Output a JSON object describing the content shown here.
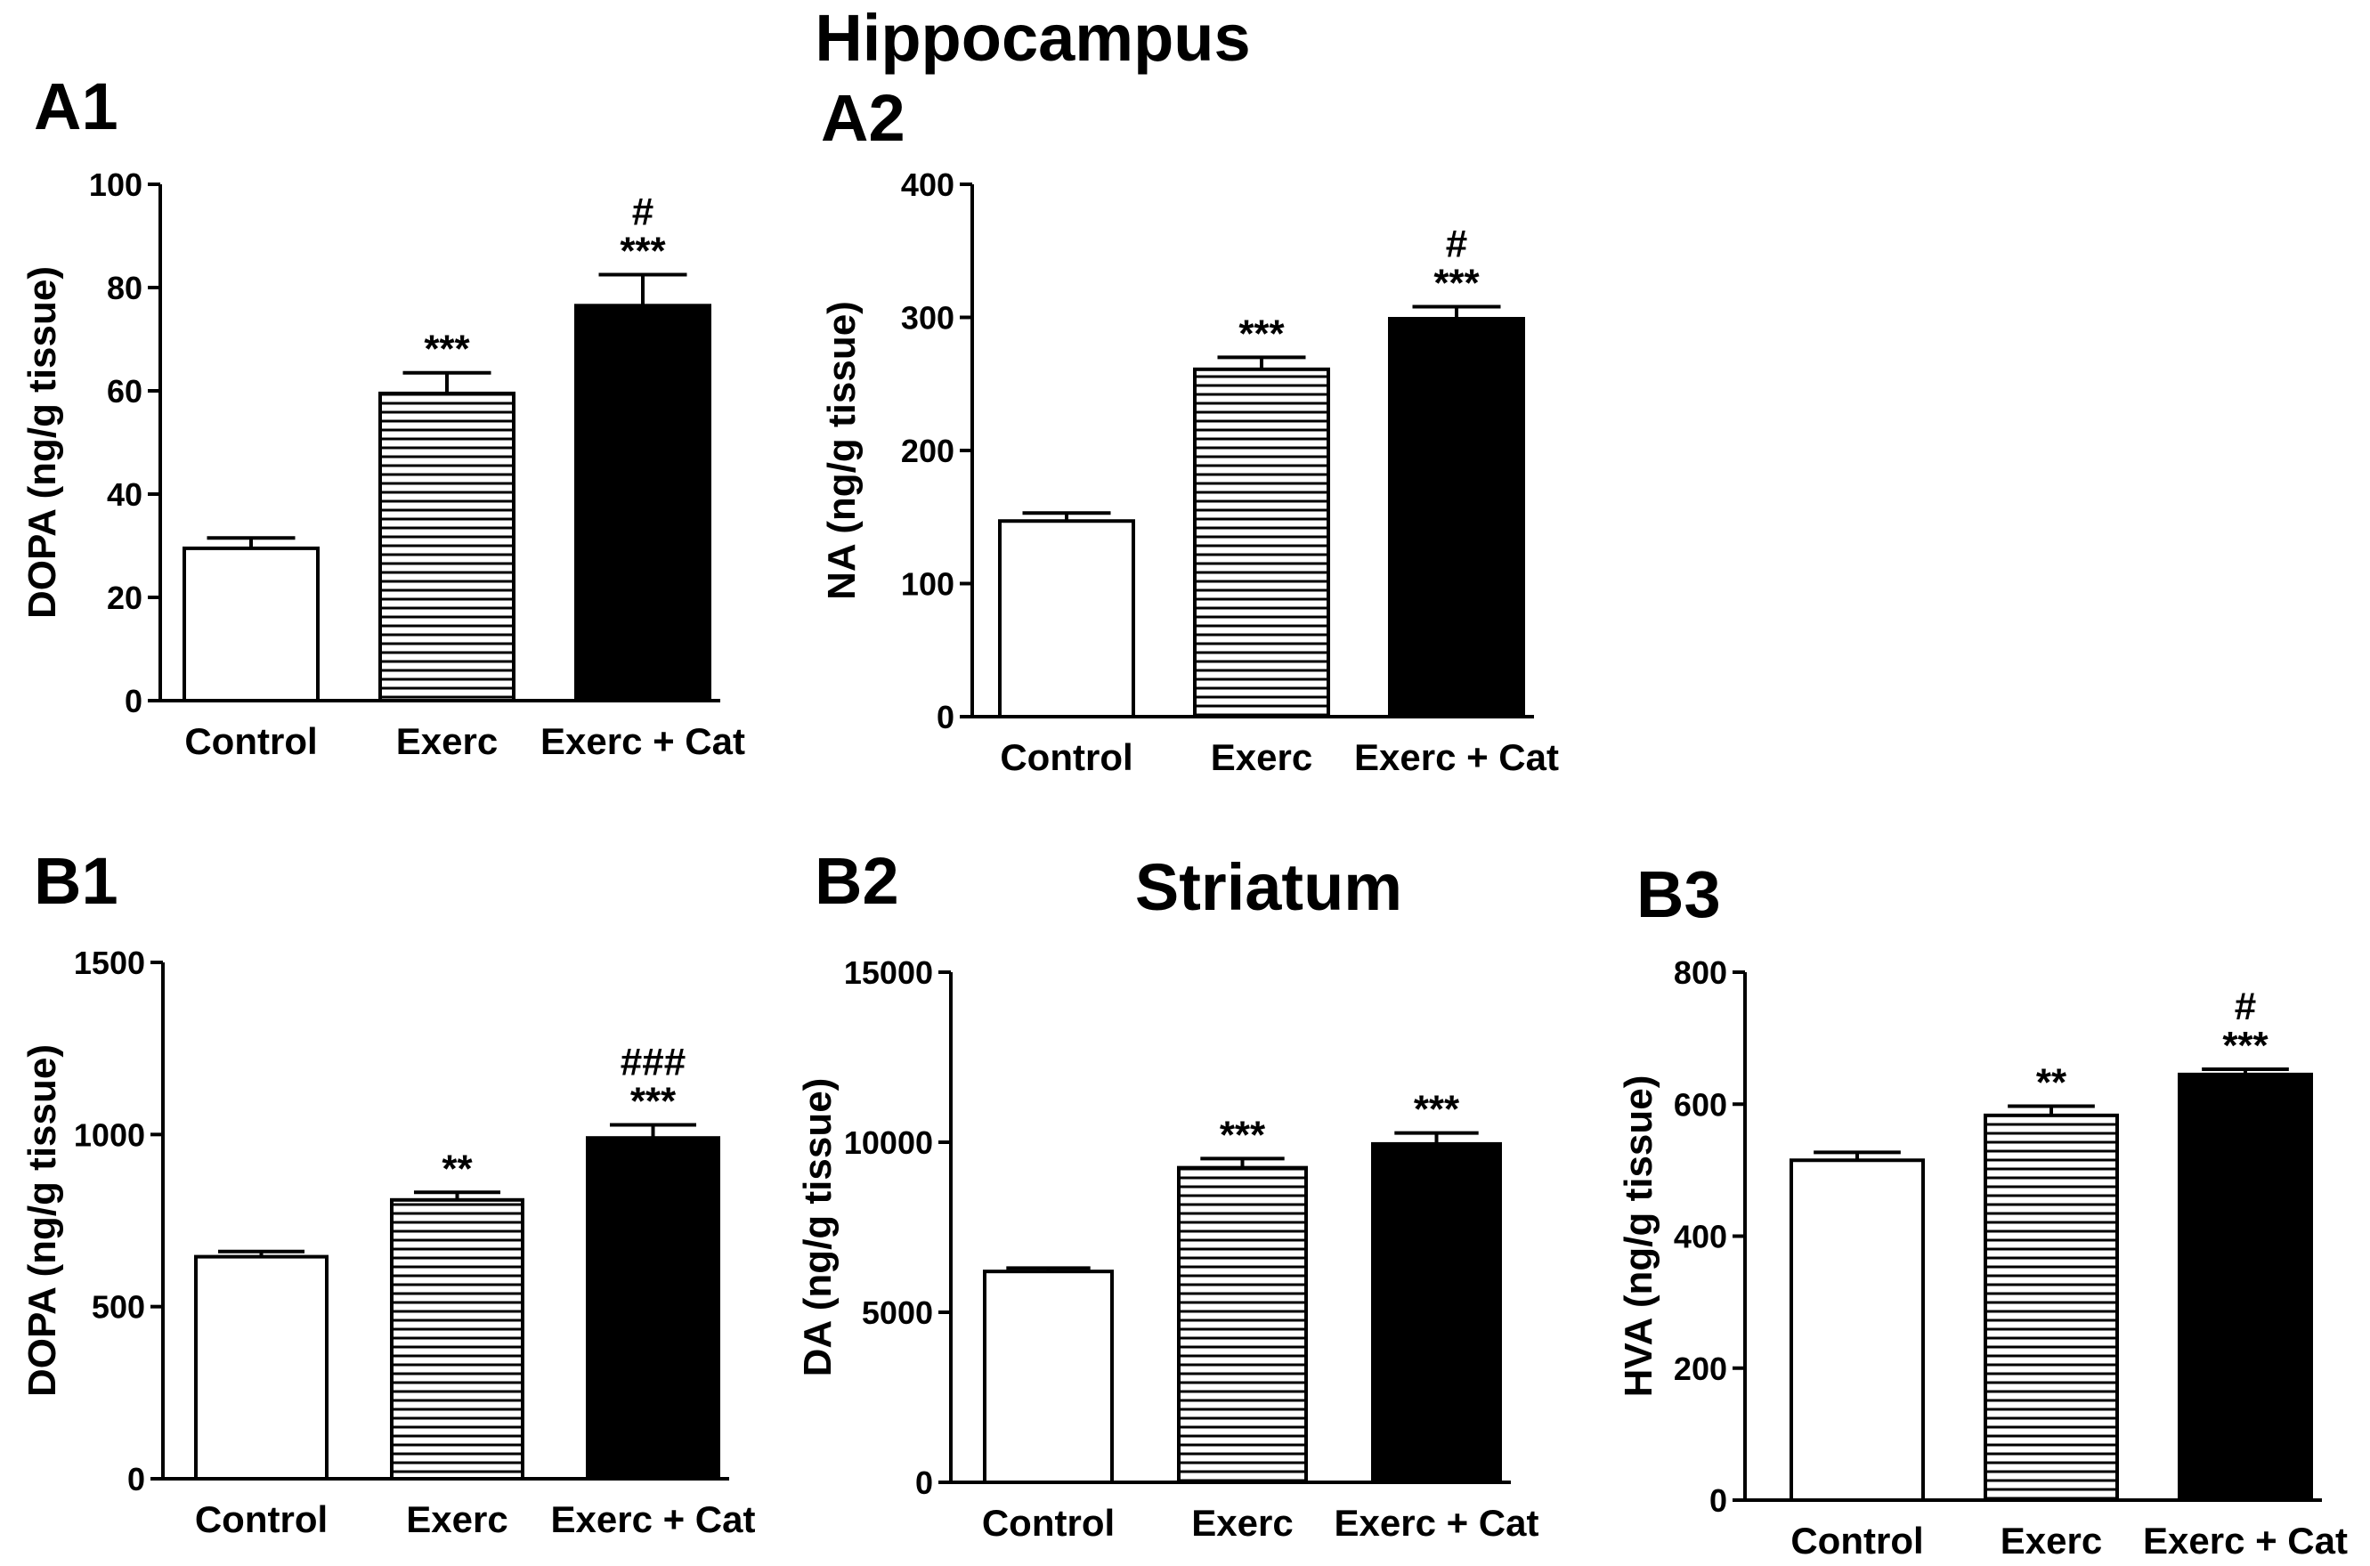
{
  "figure": {
    "title_hippocampus": "Hippocampus",
    "title_striatum": "Striatum"
  },
  "chart_data": [
    {
      "panel": "A1",
      "region": "Hippocampus",
      "type": "bar",
      "categories": [
        "Control",
        "Exerc",
        "Exerc + Cat"
      ],
      "values": [
        29.5,
        59.5,
        76.5
      ],
      "errors": [
        2,
        4,
        6
      ],
      "significance": [
        "",
        "***",
        "***"
      ],
      "significance2": [
        "",
        "",
        "#"
      ],
      "ylabel": "DOPA (ng/g tissue)",
      "ylim": [
        0,
        100
      ],
      "yticks": [
        0,
        20,
        40,
        60,
        80,
        100
      ],
      "fills": [
        "white",
        "hatch",
        "black"
      ]
    },
    {
      "panel": "A2",
      "region": "Hippocampus",
      "type": "bar",
      "categories": [
        "Control",
        "Exerc",
        "Exerc + Cat"
      ],
      "values": [
        147,
        261,
        299
      ],
      "errors": [
        6,
        9,
        9
      ],
      "significance": [
        "",
        "***",
        "***"
      ],
      "significance2": [
        "",
        "",
        "#"
      ],
      "ylabel": "NA (ng/g tissue)",
      "ylim": [
        0,
        400
      ],
      "yticks": [
        0,
        100,
        200,
        300,
        400
      ],
      "fills": [
        "white",
        "hatch",
        "black"
      ]
    },
    {
      "panel": "B1",
      "region": "Striatum",
      "type": "bar",
      "categories": [
        "Control",
        "Exerc",
        "Exerc + Cat"
      ],
      "values": [
        645,
        810,
        990
      ],
      "errors": [
        15,
        22,
        38
      ],
      "significance": [
        "",
        "**",
        "***"
      ],
      "significance2": [
        "",
        "",
        "###"
      ],
      "ylabel": "DOPA (ng/g tissue)",
      "ylim": [
        0,
        1500
      ],
      "yticks": [
        0,
        500,
        1000,
        1500
      ],
      "fills": [
        "white",
        "hatch",
        "black"
      ]
    },
    {
      "panel": "B2",
      "region": "Striatum",
      "type": "bar",
      "categories": [
        "Control",
        "Exerc",
        "Exerc + Cat"
      ],
      "values": [
        6200,
        9250,
        9950
      ],
      "errors": [
        100,
        270,
        320
      ],
      "significance": [
        "",
        "***",
        "***"
      ],
      "significance2": [
        "",
        "",
        ""
      ],
      "ylabel": "DA (ng/g tissue)",
      "ylim": [
        0,
        15000
      ],
      "yticks": [
        0,
        5000,
        10000,
        15000
      ],
      "fills": [
        "white",
        "hatch",
        "black"
      ]
    },
    {
      "panel": "B3",
      "region": "Striatum",
      "type": "bar",
      "categories": [
        "Control",
        "Exerc",
        "Exerc + Cat"
      ],
      "values": [
        515,
        583,
        645
      ],
      "errors": [
        12,
        14,
        8
      ],
      "significance": [
        "",
        "**",
        "***"
      ],
      "significance2": [
        "",
        "",
        "#"
      ],
      "ylabel": "HVA (ng/g tissue)",
      "ylim": [
        0,
        800
      ],
      "yticks": [
        0,
        200,
        400,
        600,
        800
      ],
      "fills": [
        "white",
        "hatch",
        "black"
      ]
    }
  ]
}
